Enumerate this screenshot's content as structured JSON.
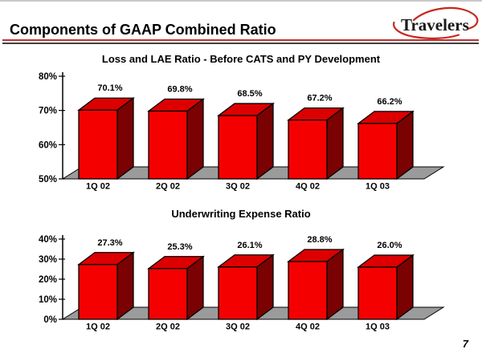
{
  "slide": {
    "title": "Components of GAAP Combined Ratio",
    "page_number": "7",
    "logo": {
      "text": "Travelers",
      "tm": "™"
    },
    "colors": {
      "bar_front": "#f50000",
      "bar_top": "#dc0000",
      "bar_side": "#7a0202",
      "floor": "#9b9b9b",
      "outline": "#000000",
      "rule_red": "#bb3333",
      "rule_dark": "#404040",
      "logo_red": "#c8281e"
    }
  },
  "chart_data": [
    {
      "type": "bar",
      "threeD": true,
      "title": "Loss and LAE Ratio - Before CATS and PY Development",
      "categories": [
        "1Q 02",
        "2Q 02",
        "3Q 02",
        "4Q 02",
        "1Q 03"
      ],
      "values": [
        70.1,
        69.8,
        68.5,
        67.2,
        66.2
      ],
      "value_labels": [
        "70.1%",
        "69.8%",
        "68.5%",
        "67.2%",
        "66.2%"
      ],
      "xlabel": "",
      "ylabel": "",
      "ylim": [
        50,
        80
      ],
      "ytick_values": [
        80,
        70,
        60,
        50
      ],
      "ytick_labels": [
        "80%",
        "70%",
        "60%",
        "50%"
      ],
      "grid": false,
      "legend": "none"
    },
    {
      "type": "bar",
      "threeD": true,
      "title": "Underwriting Expense Ratio",
      "categories": [
        "1Q 02",
        "2Q 02",
        "3Q 02",
        "4Q 02",
        "1Q 03"
      ],
      "values": [
        27.3,
        25.3,
        26.1,
        28.8,
        26.0
      ],
      "value_labels": [
        "27.3%",
        "25.3%",
        "26.1%",
        "28.8%",
        "26.0%"
      ],
      "xlabel": "",
      "ylabel": "",
      "ylim": [
        0,
        40
      ],
      "ytick_values": [
        40,
        30,
        20,
        10,
        0
      ],
      "ytick_labels": [
        "40%",
        "30%",
        "20%",
        "10%",
        "0%"
      ],
      "grid": false,
      "legend": "none"
    }
  ]
}
